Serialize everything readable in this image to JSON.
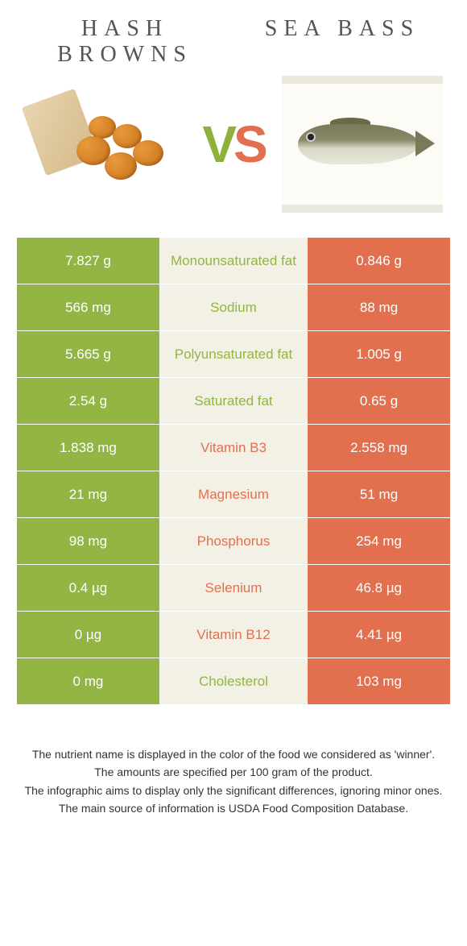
{
  "left_food": {
    "name": "HASH BROWNS"
  },
  "right_food": {
    "name": "SEA BASS"
  },
  "colors": {
    "green": "#92b543",
    "orange": "#e2704e",
    "mid_bg": "#f3f1e6"
  },
  "rows": [
    {
      "left": "7.827 g",
      "label": "Monounsaturated fat",
      "right": "0.846 g",
      "winner": "left"
    },
    {
      "left": "566 mg",
      "label": "Sodium",
      "right": "88 mg",
      "winner": "left"
    },
    {
      "left": "5.665 g",
      "label": "Polyunsaturated fat",
      "right": "1.005 g",
      "winner": "left"
    },
    {
      "left": "2.54 g",
      "label": "Saturated fat",
      "right": "0.65 g",
      "winner": "left"
    },
    {
      "left": "1.838 mg",
      "label": "Vitamin B3",
      "right": "2.558 mg",
      "winner": "right"
    },
    {
      "left": "21 mg",
      "label": "Magnesium",
      "right": "51 mg",
      "winner": "right"
    },
    {
      "left": "98 mg",
      "label": "Phosphorus",
      "right": "254 mg",
      "winner": "right"
    },
    {
      "left": "0.4 µg",
      "label": "Selenium",
      "right": "46.8 µg",
      "winner": "right"
    },
    {
      "left": "0 µg",
      "label": "Vitamin B12",
      "right": "4.41 µg",
      "winner": "right"
    },
    {
      "left": "0 mg",
      "label": "Cholesterol",
      "right": "103 mg",
      "winner": "left"
    }
  ],
  "footer": {
    "l1": "The nutrient name is displayed in the color of the food we considered as 'winner'.",
    "l2": "The amounts are specified per 100 gram of the product.",
    "l3": "The infographic aims to display only the significant differences, ignoring minor ones.",
    "l4": "The main source of information is USDA Food Composition Database."
  }
}
